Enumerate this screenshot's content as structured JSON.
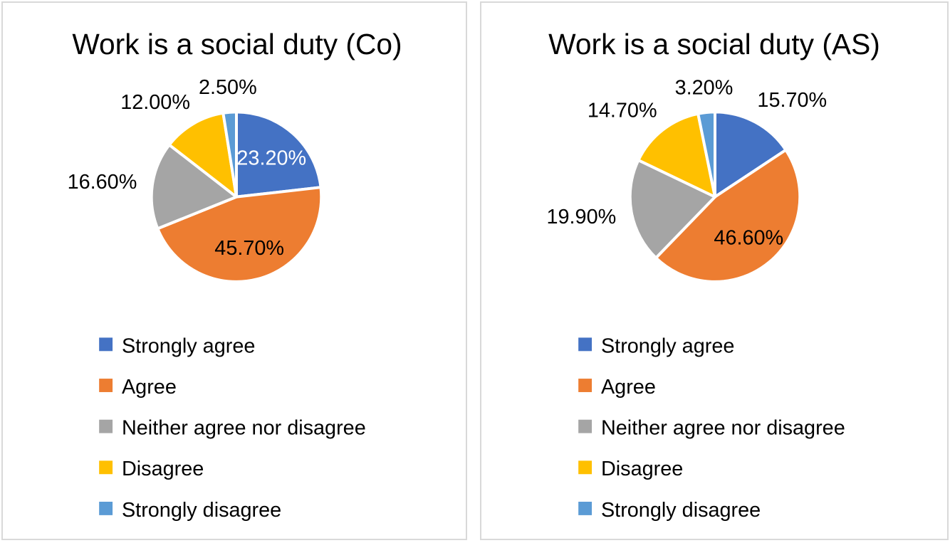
{
  "chart_data": [
    {
      "type": "pie",
      "title": "Work is a social duty (Co)",
      "categories": [
        "Strongly agree",
        "Agree",
        "Neither agree nor disagree",
        "Disagree",
        "Strongly disagree"
      ],
      "values": [
        23.2,
        45.7,
        16.6,
        12.0,
        2.5
      ],
      "labels": [
        "23.20%",
        "45.70%",
        "16.60%",
        "12.00%",
        "2.50%"
      ],
      "label_inside": [
        true,
        true,
        false,
        false,
        false
      ],
      "colors": [
        "#4472c4",
        "#ed7d31",
        "#a5a5a5",
        "#ffc000",
        "#5b9bd5"
      ],
      "legend_position": "bottom"
    },
    {
      "type": "pie",
      "title": "Work is a social duty (AS)",
      "categories": [
        "Strongly agree",
        "Agree",
        "Neither agree nor disagree",
        "Disagree",
        "Strongly disagree"
      ],
      "values": [
        15.7,
        46.6,
        19.9,
        14.7,
        3.2
      ],
      "labels": [
        "15.70%",
        "46.60%",
        "19.90%",
        "14.70%",
        "3.20%"
      ],
      "label_inside": [
        false,
        true,
        false,
        false,
        false
      ],
      "colors": [
        "#4472c4",
        "#ed7d31",
        "#a5a5a5",
        "#ffc000",
        "#5b9bd5"
      ],
      "legend_position": "bottom"
    }
  ]
}
